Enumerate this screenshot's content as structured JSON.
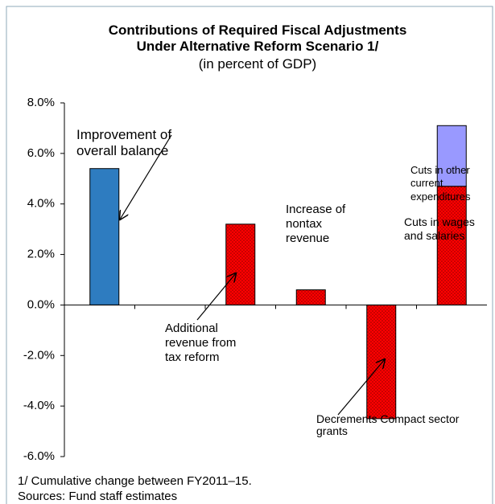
{
  "chart_data": {
    "type": "bar",
    "title": "Contributions of Required Fiscal Adjustments",
    "title2": "Under Alternative Reform Scenario 1/",
    "subtitle": "(in percent of GDP)",
    "categories": [
      null,
      null,
      null,
      null,
      null,
      null
    ],
    "stacked": true,
    "series": [
      {
        "color": "#2e7cc0",
        "values": [
          5.4,
          null,
          null,
          null,
          null,
          null
        ]
      },
      {
        "color": "#ff0000",
        "pattern": "dots",
        "values": [
          null,
          null,
          3.2,
          0.6,
          -4.5,
          4.7
        ]
      },
      {
        "color": "#9999ff",
        "values": [
          null,
          null,
          null,
          null,
          null,
          2.4
        ]
      }
    ],
    "ylim": [
      -6,
      8
    ],
    "yticks": [
      {
        "value": -6,
        "label": "-6.0%"
      },
      {
        "value": -4,
        "label": "-4.0%"
      },
      {
        "value": -2,
        "label": "-2.0%"
      },
      {
        "value": 0,
        "label": "0.0%"
      },
      {
        "value": 2,
        "label": "2.0%"
      },
      {
        "value": 4,
        "label": "4.0%"
      },
      {
        "value": 6,
        "label": "6.0%"
      },
      {
        "value": 8,
        "label": "8.0%"
      }
    ],
    "annotations": [
      "Improvement of overall balance",
      "Additional revenue from tax reform",
      "Increase of nontax revenue",
      "Decrements Compact sector grants",
      "Cuts in other current expenditures",
      "Cuts in wages and salaries"
    ],
    "footnotes": [
      "1/ Cumulative change between FY2011–15.",
      "Sources: Fund staff estimates"
    ]
  }
}
